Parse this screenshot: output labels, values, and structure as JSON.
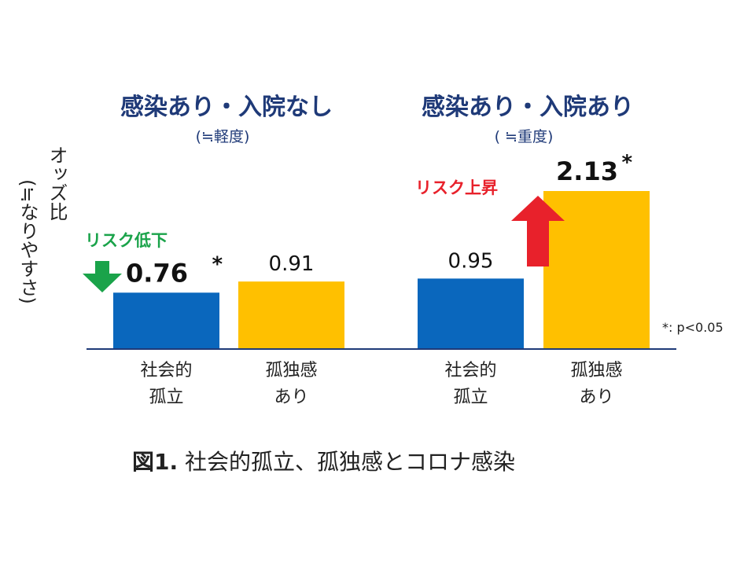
{
  "chart_data": {
    "type": "bar",
    "ylabel": "オッズ比",
    "ylabel_note": "(≒なりやすさ)",
    "ylim": [
      0,
      2.2
    ],
    "significance_note": "*: p<0.05",
    "caption": {
      "label": "図1.",
      "text": " 社会的孤立、孤独感とコロナ感染"
    },
    "panels": [
      {
        "title": "感染あり・入院なし",
        "subtitle": "(≒軽度)",
        "callout": {
          "text": "リスク低下",
          "direction": "down",
          "color": "#1aa34a"
        },
        "bars": [
          {
            "category": [
              "社会的",
              "孤立"
            ],
            "value": 0.76,
            "label": "0.76",
            "significant": true,
            "color": "#0a67bd"
          },
          {
            "category": [
              "孤独感",
              "あり"
            ],
            "value": 0.91,
            "label": "0.91",
            "significant": false,
            "color": "#ffc000"
          }
        ]
      },
      {
        "title": "感染あり・入院あり",
        "subtitle": "( ≒重度)",
        "callout": {
          "text": "リスク上昇",
          "direction": "up",
          "color": "#e8212b"
        },
        "bars": [
          {
            "category": [
              "社会的",
              "孤立"
            ],
            "value": 0.95,
            "label": "0.95",
            "significant": false,
            "color": "#0a67bd"
          },
          {
            "category": [
              "孤独感",
              "あり"
            ],
            "value": 2.13,
            "label": "2.13",
            "significant": true,
            "color": "#ffc000"
          }
        ]
      }
    ],
    "axis_color": "#1f3a78"
  }
}
